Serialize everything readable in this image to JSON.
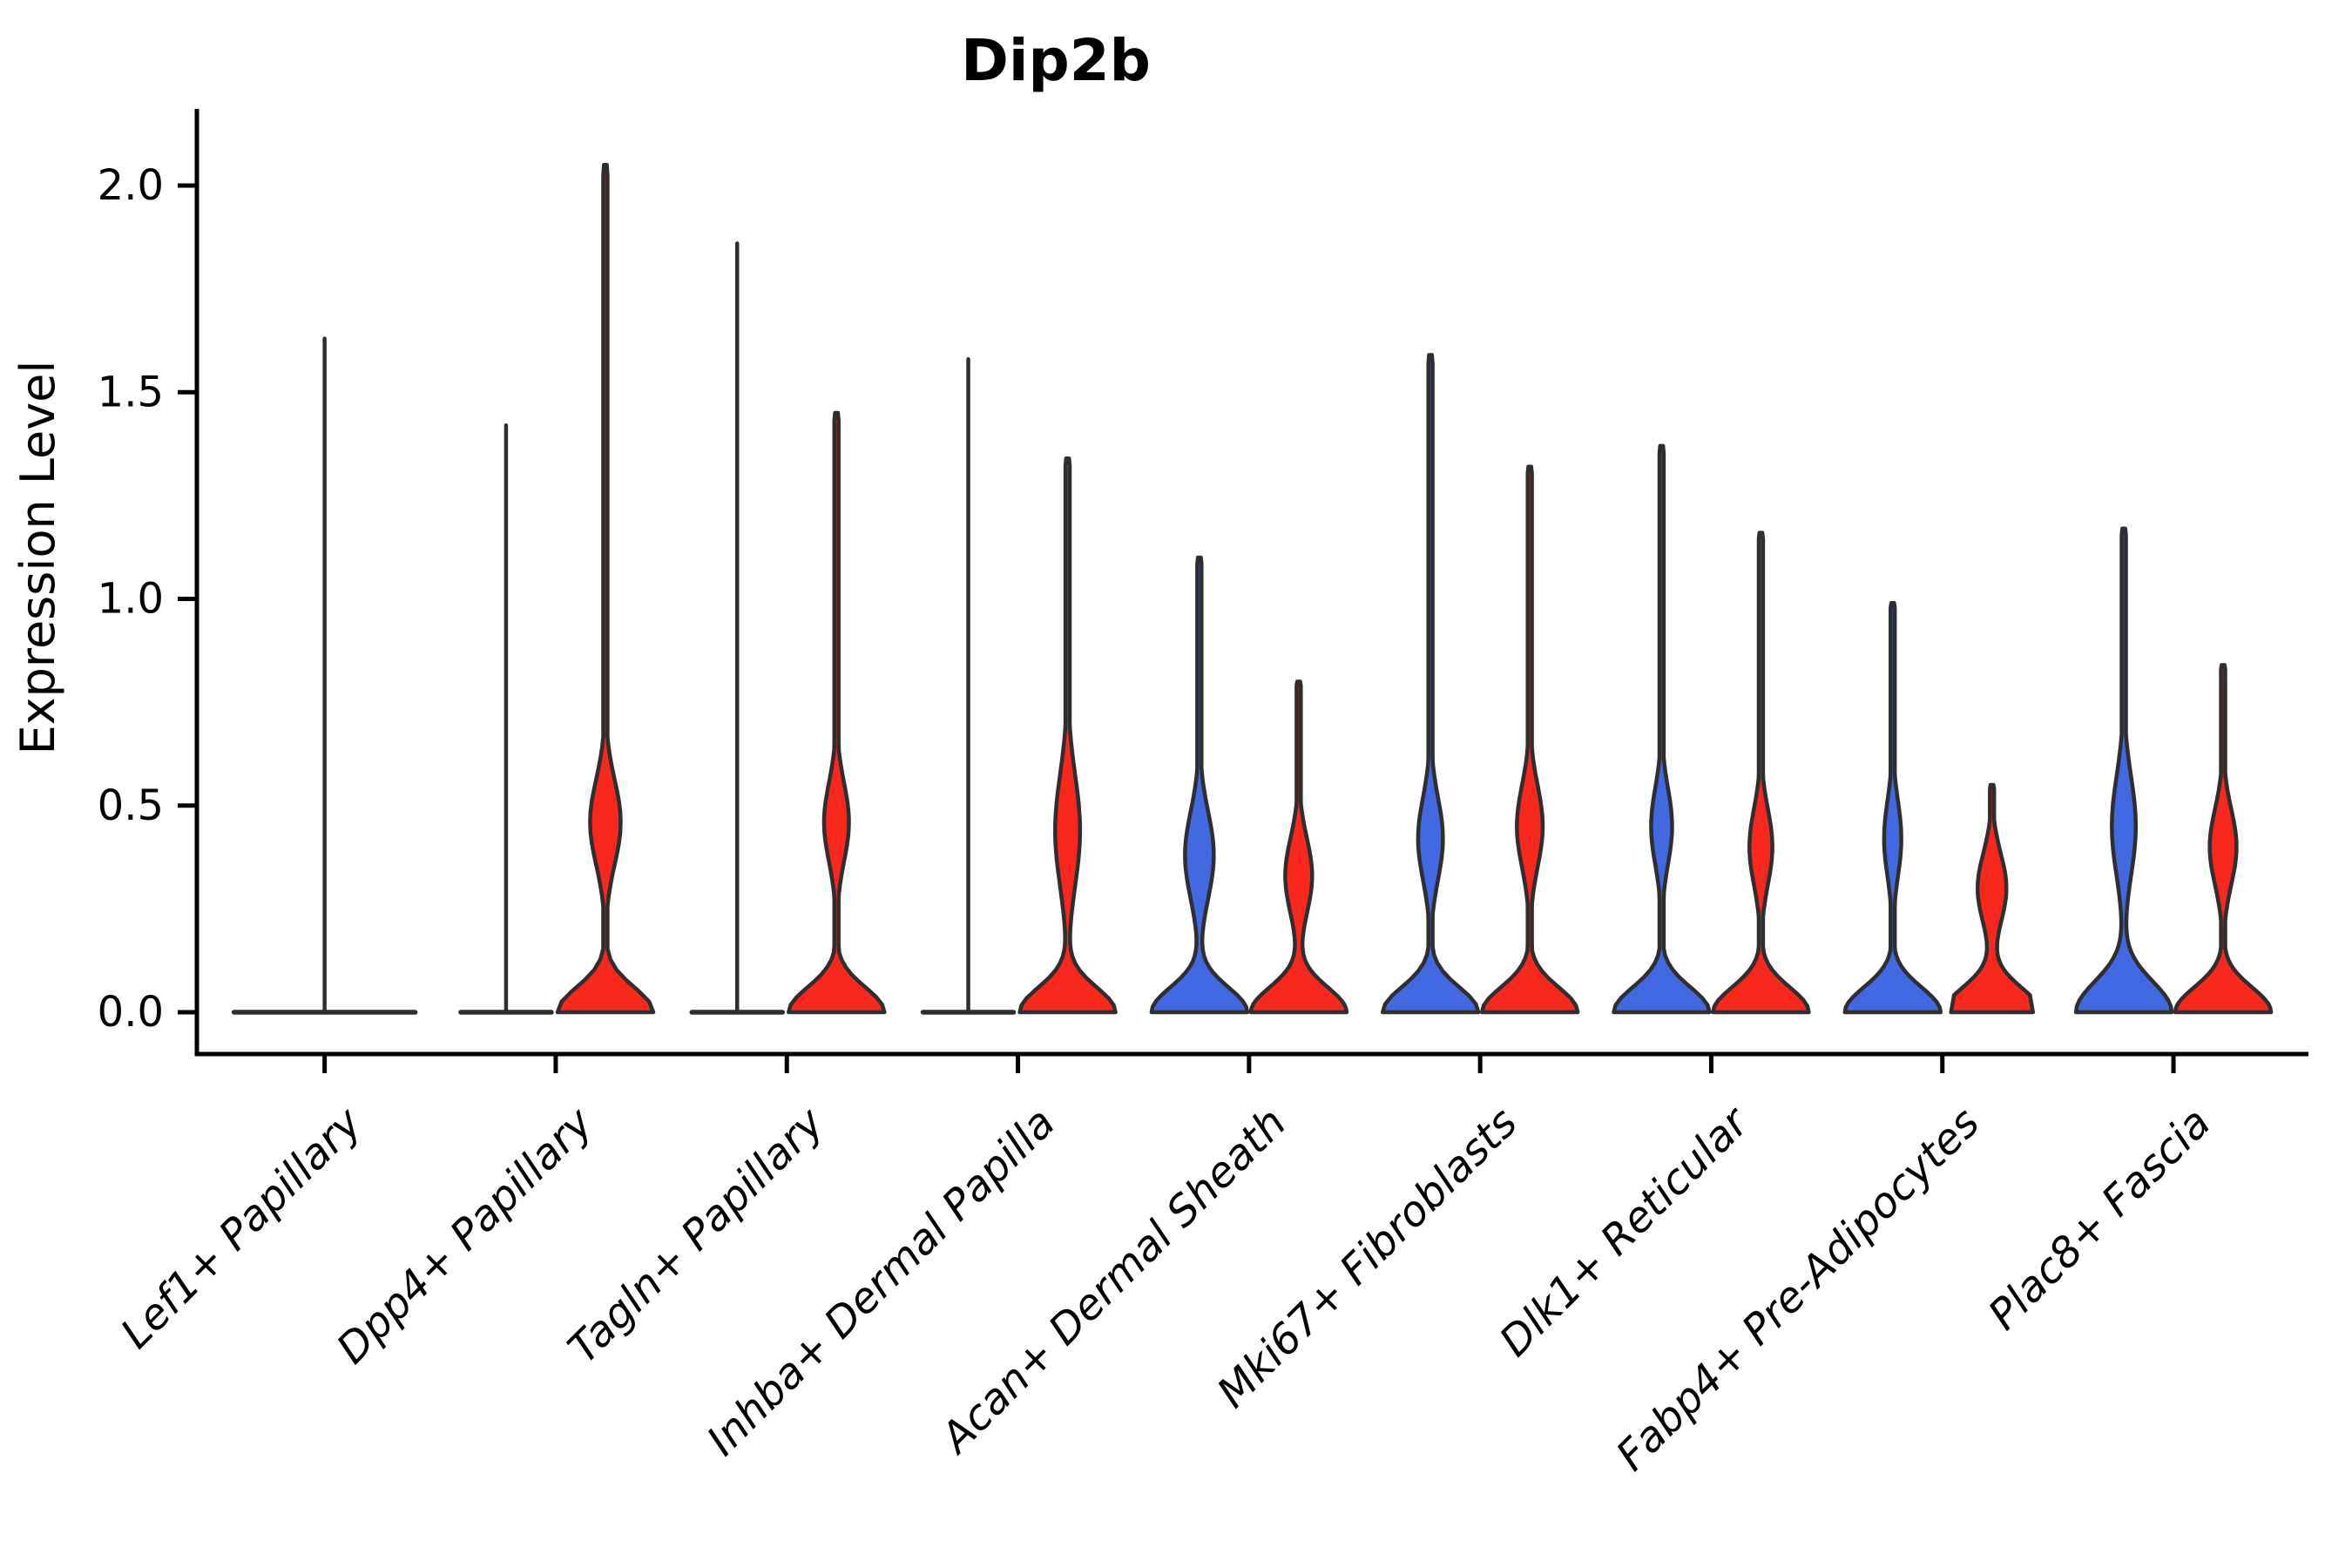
{
  "title": "Dip2b",
  "ylabel": "Expression Level",
  "colors": {
    "blue": "#4169E1",
    "red": "#F8281C",
    "outline": "#2E2E2E",
    "background": "#FFFFFF",
    "text": "#000000"
  },
  "chart_data": {
    "type": "violin",
    "title": "Dip2b",
    "xlabel": "",
    "ylabel": "Expression Level",
    "ylim": [
      -0.1,
      2.2
    ],
    "yticks": [
      0.0,
      0.5,
      1.0,
      1.5,
      2.0
    ],
    "ytick_labels": [
      "0.0",
      "0.5",
      "1.0",
      "1.5",
      "2.0"
    ],
    "grid": false,
    "legend_position": "none",
    "x_tick_label_rotation": 45,
    "x_tick_label_style": "italic",
    "categories": [
      "Lef1+ Papillary",
      "Dpp4+ Papillary",
      "Tagln+ Papillary",
      "Inhba+ Dermal Papilla",
      "Acan+ Dermal Sheath",
      "Mki67+ Fibroblasts",
      "Dlk1+ Reticular",
      "Fabp4+ Pre-Adipocytes",
      "Plac8+ Fascia"
    ],
    "series": [
      {
        "name": "group-blue",
        "color": "#4169E1",
        "max_values": [
          1.63,
          1.42,
          1.86,
          1.58,
          1.1,
          1.59,
          1.37,
          0.99,
          1.17
        ]
      },
      {
        "name": "group-red",
        "color": "#F8281C",
        "max_values": [
          null,
          2.05,
          1.45,
          1.34,
          0.8,
          1.32,
          1.16,
          0.55,
          0.84
        ]
      }
    ],
    "violins": [
      {
        "category": "Lef1+ Papillary",
        "layout": "single",
        "parts": [
          {
            "group": "none",
            "style": "collapsed",
            "max": 1.63,
            "flat_half": 104
          }
        ]
      },
      {
        "category": "Dpp4+ Papillary",
        "layout": "pair",
        "parts": [
          {
            "group": "blue",
            "style": "collapsed",
            "max": 1.42,
            "flat_half": 52
          },
          {
            "group": "red",
            "style": "violin",
            "max": 2.05,
            "bulge_center": 0.46,
            "bulge_width": 0.32,
            "bulge_sigma": 0.145,
            "base_sigma": 0.085
          }
        ]
      },
      {
        "category": "Tagln+ Papillary",
        "layout": "pair",
        "parts": [
          {
            "group": "blue",
            "style": "collapsed",
            "max": 1.86,
            "flat_half": 52
          },
          {
            "group": "red",
            "style": "violin",
            "max": 1.45,
            "bulge_center": 0.46,
            "bulge_width": 0.26,
            "bulge_sigma": 0.135,
            "base_sigma": 0.085
          }
        ]
      },
      {
        "category": "Inhba+ Dermal Papilla",
        "layout": "pair",
        "parts": [
          {
            "group": "blue",
            "style": "collapsed",
            "max": 1.58,
            "flat_half": 52
          },
          {
            "group": "red",
            "style": "violin",
            "max": 1.34,
            "bulge_center": 0.44,
            "bulge_width": 0.26,
            "bulge_sigma": 0.19,
            "base_sigma": 0.085
          }
        ]
      },
      {
        "category": "Acan+ Dermal Sheath",
        "layout": "pair",
        "parts": [
          {
            "group": "blue",
            "style": "violin",
            "max": 1.1,
            "bulge_center": 0.38,
            "bulge_width": 0.3,
            "bulge_sigma": 0.15,
            "base_sigma": 0.085
          },
          {
            "group": "red",
            "style": "violin",
            "max": 0.8,
            "bulge_center": 0.33,
            "bulge_width": 0.28,
            "bulge_sigma": 0.13,
            "base_sigma": 0.085
          }
        ]
      },
      {
        "category": "Mki67+ Fibroblasts",
        "layout": "pair",
        "parts": [
          {
            "group": "blue",
            "style": "violin",
            "max": 1.59,
            "bulge_center": 0.42,
            "bulge_width": 0.26,
            "bulge_sigma": 0.14,
            "base_sigma": 0.085
          },
          {
            "group": "red",
            "style": "violin",
            "max": 1.32,
            "bulge_center": 0.45,
            "bulge_width": 0.27,
            "bulge_sigma": 0.14,
            "base_sigma": 0.085
          }
        ]
      },
      {
        "category": "Dlk1+ Reticular",
        "layout": "pair",
        "parts": [
          {
            "group": "blue",
            "style": "violin",
            "max": 1.37,
            "bulge_center": 0.45,
            "bulge_width": 0.22,
            "bulge_sigma": 0.13,
            "base_sigma": 0.085
          },
          {
            "group": "red",
            "style": "violin",
            "max": 1.16,
            "bulge_center": 0.4,
            "bulge_width": 0.24,
            "bulge_sigma": 0.13,
            "base_sigma": 0.085
          }
        ]
      },
      {
        "category": "Fabp4+ Pre-Adipocytes",
        "layout": "pair",
        "parts": [
          {
            "group": "blue",
            "style": "violin",
            "max": 0.99,
            "bulge_center": 0.42,
            "bulge_width": 0.18,
            "bulge_sigma": 0.13,
            "base_sigma": 0.085
          },
          {
            "group": "red",
            "style": "violin",
            "max": 0.55,
            "bulge_center": 0.3,
            "bulge_width": 0.3,
            "bulge_sigma": 0.12,
            "base_sigma": 0.085
          }
        ]
      },
      {
        "category": "Plac8+ Fascia",
        "layout": "pair",
        "parts": [
          {
            "group": "blue",
            "style": "violin",
            "max": 1.17,
            "bulge_center": 0.45,
            "bulge_width": 0.25,
            "bulge_sigma": 0.17,
            "base_sigma": 0.105
          },
          {
            "group": "red",
            "style": "violin",
            "max": 0.84,
            "bulge_center": 0.4,
            "bulge_width": 0.28,
            "bulge_sigma": 0.13,
            "base_sigma": 0.085
          }
        ]
      }
    ]
  }
}
